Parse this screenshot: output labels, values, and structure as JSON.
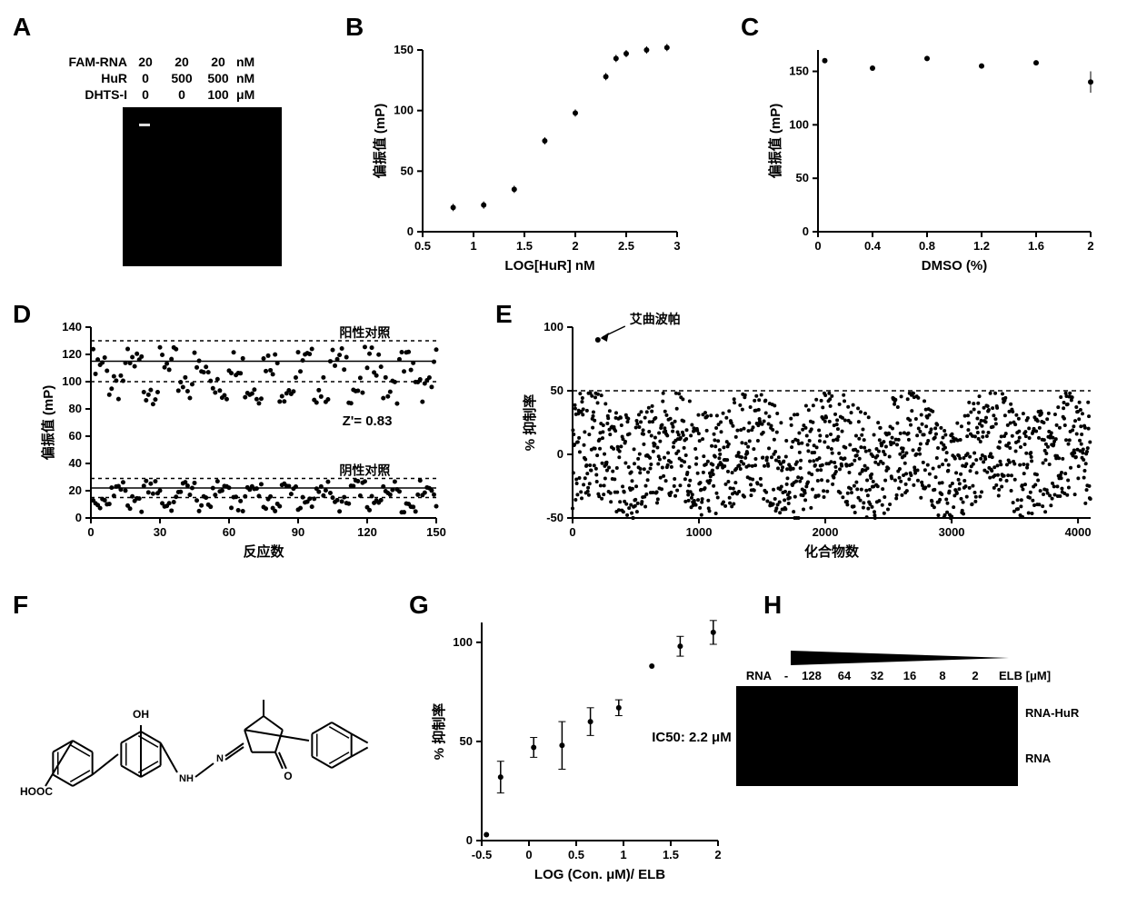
{
  "panelA": {
    "label": "A",
    "rows": [
      {
        "name": "FAM-RNA",
        "vals": [
          "20",
          "20",
          "20"
        ],
        "unit": "nM"
      },
      {
        "name": "HuR",
        "vals": [
          "0",
          "500",
          "500"
        ],
        "unit": "nM"
      },
      {
        "name": "DHTS-I",
        "vals": [
          "0",
          "0",
          "100"
        ],
        "unit": "μM"
      }
    ]
  },
  "panelB": {
    "label": "B",
    "type": "scatter",
    "xlabel": "LOG[HuR] nM",
    "ylabel": "偏振值 (mP)",
    "xlim": [
      0.5,
      3.0
    ],
    "xticks": [
      0.5,
      1,
      1.5,
      2,
      2.5,
      3
    ],
    "ylim": [
      0,
      150
    ],
    "yticks": [
      0,
      50,
      100,
      150
    ],
    "points": [
      {
        "x": 0.8,
        "y": 20
      },
      {
        "x": 1.1,
        "y": 22
      },
      {
        "x": 1.4,
        "y": 35
      },
      {
        "x": 1.7,
        "y": 75
      },
      {
        "x": 2.0,
        "y": 98
      },
      {
        "x": 2.3,
        "y": 128
      },
      {
        "x": 2.4,
        "y": 143
      },
      {
        "x": 2.5,
        "y": 147
      },
      {
        "x": 2.7,
        "y": 150
      },
      {
        "x": 2.9,
        "y": 152
      }
    ],
    "marker_size": 3,
    "point_color": "#000000"
  },
  "panelC": {
    "label": "C",
    "type": "scatter",
    "xlabel": "DMSO (%)",
    "ylabel": "偏振值 (mP)",
    "xlim": [
      0,
      2
    ],
    "xticks": [
      0,
      0.4,
      0.8,
      1.2,
      1.6,
      2
    ],
    "ylim": [
      0,
      170
    ],
    "yticks": [
      0,
      50,
      100,
      150
    ],
    "points": [
      {
        "x": 0.05,
        "y": 160
      },
      {
        "x": 0.4,
        "y": 153
      },
      {
        "x": 0.8,
        "y": 162
      },
      {
        "x": 1.2,
        "y": 155
      },
      {
        "x": 1.6,
        "y": 158
      },
      {
        "x": 2.0,
        "y": 140,
        "err": 10
      }
    ],
    "marker_size": 3,
    "point_color": "#000000"
  },
  "panelD": {
    "label": "D",
    "type": "scatter",
    "xlabel": "反应数",
    "ylabel": "偏振值 (mP)",
    "xlim": [
      0,
      150
    ],
    "xticks": [
      0,
      30,
      60,
      90,
      120,
      150
    ],
    "ylim": [
      0,
      140
    ],
    "yticks": [
      0,
      20,
      40,
      60,
      80,
      100,
      120,
      140
    ],
    "pos_label": "阳性对照",
    "neg_label": "阴性对照",
    "z_label": "Z'= 0.83",
    "pos_band_mean": 115,
    "pos_band_sd": 15,
    "neg_band_mean": 22,
    "neg_band_sd": 7,
    "n_points": 150,
    "point_color": "#000000",
    "marker_size": 2.5
  },
  "panelE": {
    "label": "E",
    "type": "scatter",
    "xlabel": "化合物数",
    "ylabel": "% 抑制率",
    "xlim": [
      0,
      4100
    ],
    "xticks": [
      0,
      1000,
      2000,
      3000,
      4000
    ],
    "ylim": [
      -50,
      100
    ],
    "yticks": [
      -50,
      0,
      50,
      100
    ],
    "threshold": 50,
    "hit_label": "艾曲波帕",
    "hit_x": 200,
    "hit_y": 90,
    "n_points": 4100,
    "point_color": "#000000",
    "marker_size": 2
  },
  "panelF": {
    "label": "F",
    "type": "chemical-structure",
    "hooc_label": "HOOC",
    "oh_label": "OH",
    "nh_label": "NH",
    "n_label": "N"
  },
  "panelG": {
    "label": "G",
    "type": "scatter",
    "xlabel": "LOG (Con. μM)/ ELB",
    "ylabel": "% 抑制率",
    "xlim": [
      -0.5,
      2.0
    ],
    "xticks": [
      -0.5,
      0,
      0.5,
      1.0,
      1.5,
      2.0
    ],
    "ylim": [
      0,
      110
    ],
    "yticks": [
      0,
      50,
      100
    ],
    "ic50_label": "IC50: 2.2 μM",
    "points": [
      {
        "x": -0.3,
        "y": 32,
        "err": 8
      },
      {
        "x": -0.45,
        "y": 3
      },
      {
        "x": 0.05,
        "y": 47,
        "err": 5
      },
      {
        "x": 0.35,
        "y": 48,
        "err": 12
      },
      {
        "x": 0.65,
        "y": 60,
        "err": 7
      },
      {
        "x": 0.95,
        "y": 67,
        "err": 4
      },
      {
        "x": 1.3,
        "y": 88
      },
      {
        "x": 1.6,
        "y": 98,
        "err": 5
      },
      {
        "x": 1.95,
        "y": 105,
        "err": 6
      }
    ],
    "marker_size": 3,
    "point_color": "#000000"
  },
  "panelH": {
    "label": "H",
    "rna_label": "RNA",
    "dash": "-",
    "concentrations": [
      "128",
      "64",
      "32",
      "16",
      "8",
      "2"
    ],
    "elb_label": "ELB [μM]",
    "row1_label": "RNA-HuR",
    "row2_label": "RNA"
  },
  "colors": {
    "background": "#ffffff",
    "text": "#000000",
    "axis": "#000000",
    "point": "#000000",
    "black_box": "#000000"
  },
  "fonts": {
    "panel_label_size": 28,
    "axis_label_size": 14,
    "tick_label_size": 13
  }
}
